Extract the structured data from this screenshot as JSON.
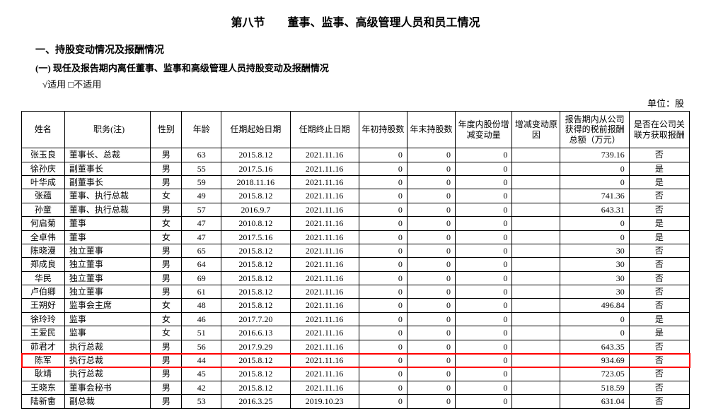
{
  "title": "第八节　　董事、监事、高级管理人员和员工情况",
  "heading1": "一、持股变动情况及报酬情况",
  "heading2": "(一) 现任及报告期内离任董事、监事和高级管理人员持股变动及报酬情况",
  "applicable": "√适用 □不适用",
  "unit": "单位：股",
  "columns": [
    "姓名",
    "职务(注)",
    "性别",
    "年龄",
    "任期起始日期",
    "任期终止日期",
    "年初持股数",
    "年末持股数",
    "年度内股份增减变动量",
    "增减变动原因",
    "报告期内从公司获得的税前报酬总额（万元）",
    "是否在公司关联方获取报酬"
  ],
  "highlight_index": 15,
  "rows": [
    {
      "name": "张玉良",
      "pos": "董事长、总裁",
      "gender": "男",
      "age": "63",
      "start": "2015.8.12",
      "end": "2021.11.16",
      "s1": "0",
      "s2": "0",
      "chg": "0",
      "reason": "",
      "comp": "739.16",
      "rel": "否"
    },
    {
      "name": "徐孙庆",
      "pos": "副董事长",
      "gender": "男",
      "age": "55",
      "start": "2017.5.16",
      "end": "2021.11.16",
      "s1": "0",
      "s2": "0",
      "chg": "0",
      "reason": "",
      "comp": "0",
      "rel": "是"
    },
    {
      "name": "叶华成",
      "pos": "副董事长",
      "gender": "男",
      "age": "59",
      "start": "2018.11.16",
      "end": "2021.11.16",
      "s1": "0",
      "s2": "0",
      "chg": "0",
      "reason": "",
      "comp": "0",
      "rel": "是"
    },
    {
      "name": "张蕴",
      "pos": "董事、执行总裁",
      "gender": "女",
      "age": "49",
      "start": "2015.8.12",
      "end": "2021.11.16",
      "s1": "0",
      "s2": "0",
      "chg": "0",
      "reason": "",
      "comp": "741.36",
      "rel": "否"
    },
    {
      "name": "孙童",
      "pos": "董事、执行总裁",
      "gender": "男",
      "age": "57",
      "start": "2016.9.7",
      "end": "2021.11.16",
      "s1": "0",
      "s2": "0",
      "chg": "0",
      "reason": "",
      "comp": "643.31",
      "rel": "否"
    },
    {
      "name": "何启菊",
      "pos": "董事",
      "gender": "女",
      "age": "47",
      "start": "2010.8.12",
      "end": "2021.11.16",
      "s1": "0",
      "s2": "0",
      "chg": "0",
      "reason": "",
      "comp": "0",
      "rel": "是"
    },
    {
      "name": "全卓伟",
      "pos": "董事",
      "gender": "女",
      "age": "47",
      "start": "2017.5.16",
      "end": "2021.11.16",
      "s1": "0",
      "s2": "0",
      "chg": "0",
      "reason": "",
      "comp": "0",
      "rel": "是"
    },
    {
      "name": "陈晓漫",
      "pos": "独立董事",
      "gender": "男",
      "age": "65",
      "start": "2015.8.12",
      "end": "2021.11.16",
      "s1": "0",
      "s2": "0",
      "chg": "0",
      "reason": "",
      "comp": "30",
      "rel": "否"
    },
    {
      "name": "郑成良",
      "pos": "独立董事",
      "gender": "男",
      "age": "64",
      "start": "2015.8.12",
      "end": "2021.11.16",
      "s1": "0",
      "s2": "0",
      "chg": "0",
      "reason": "",
      "comp": "30",
      "rel": "否"
    },
    {
      "name": "华民",
      "pos": "独立董事",
      "gender": "男",
      "age": "69",
      "start": "2015.8.12",
      "end": "2021.11.16",
      "s1": "0",
      "s2": "0",
      "chg": "0",
      "reason": "",
      "comp": "30",
      "rel": "否"
    },
    {
      "name": "卢伯卿",
      "pos": "独立董事",
      "gender": "男",
      "age": "61",
      "start": "2015.8.12",
      "end": "2021.11.16",
      "s1": "0",
      "s2": "0",
      "chg": "0",
      "reason": "",
      "comp": "30",
      "rel": "否"
    },
    {
      "name": "王朔好",
      "pos": "监事会主席",
      "gender": "女",
      "age": "48",
      "start": "2015.8.12",
      "end": "2021.11.16",
      "s1": "0",
      "s2": "0",
      "chg": "0",
      "reason": "",
      "comp": "496.84",
      "rel": "否"
    },
    {
      "name": "徐玲玲",
      "pos": "监事",
      "gender": "女",
      "age": "46",
      "start": "2017.7.20",
      "end": "2021.11.16",
      "s1": "0",
      "s2": "0",
      "chg": "0",
      "reason": "",
      "comp": "0",
      "rel": "是"
    },
    {
      "name": "王爱民",
      "pos": "监事",
      "gender": "女",
      "age": "51",
      "start": "2016.6.13",
      "end": "2021.11.16",
      "s1": "0",
      "s2": "0",
      "chg": "0",
      "reason": "",
      "comp": "0",
      "rel": "是"
    },
    {
      "name": "茆君才",
      "pos": "执行总裁",
      "gender": "男",
      "age": "56",
      "start": "2017.9.29",
      "end": "2021.11.16",
      "s1": "0",
      "s2": "0",
      "chg": "0",
      "reason": "",
      "comp": "643.35",
      "rel": "否"
    },
    {
      "name": "陈军",
      "pos": "执行总裁",
      "gender": "男",
      "age": "44",
      "start": "2015.8.12",
      "end": "2021.11.16",
      "s1": "0",
      "s2": "0",
      "chg": "0",
      "reason": "",
      "comp": "934.69",
      "rel": "否"
    },
    {
      "name": "耿靖",
      "pos": "执行总裁",
      "gender": "男",
      "age": "45",
      "start": "2015.8.12",
      "end": "2021.11.16",
      "s1": "0",
      "s2": "0",
      "chg": "0",
      "reason": "",
      "comp": "723.05",
      "rel": "否"
    },
    {
      "name": "王晓东",
      "pos": "董事会秘书",
      "gender": "男",
      "age": "42",
      "start": "2015.8.12",
      "end": "2021.11.16",
      "s1": "0",
      "s2": "0",
      "chg": "0",
      "reason": "",
      "comp": "518.59",
      "rel": "否"
    },
    {
      "name": "陆新畬",
      "pos": "副总裁",
      "gender": "男",
      "age": "53",
      "start": "2016.3.25",
      "end": "2019.10.23",
      "s1": "0",
      "s2": "0",
      "chg": "0",
      "reason": "",
      "comp": "631.04",
      "rel": "否"
    }
  ]
}
